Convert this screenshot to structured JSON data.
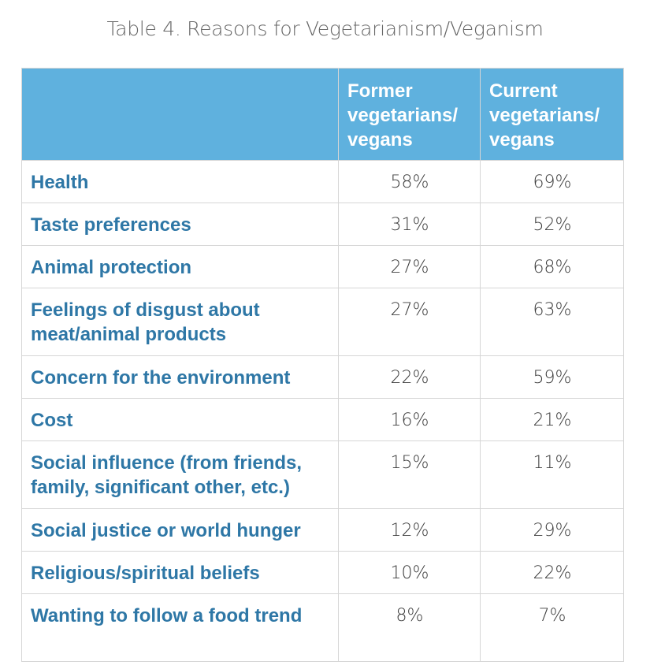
{
  "caption": "Table 4. Reasons for Vegetarianism/Veganism",
  "columns": {
    "former": "Former vegetarians/ vegans",
    "current": "Current vegetarians/ vegans"
  },
  "rows": [
    {
      "reason": "Health",
      "former": "58%",
      "current": "69%"
    },
    {
      "reason": "Taste preferences",
      "former": "31%",
      "current": "52%"
    },
    {
      "reason": "Animal protection",
      "former": "27%",
      "current": "68%"
    },
    {
      "reason": "Feelings of disgust about meat/animal products",
      "former": "27%",
      "current": "63%"
    },
    {
      "reason": "Concern for the environment",
      "former": "22%",
      "current": "59%"
    },
    {
      "reason": "Cost",
      "former": "16%",
      "current": "21%"
    },
    {
      "reason": "Social influence (from friends, family, significant other, etc.)",
      "former": "15%",
      "current": "11%"
    },
    {
      "reason": "Social justice or world hunger",
      "former": "12%",
      "current": "29%"
    },
    {
      "reason": "Religious/spiritual beliefs",
      "former": "10%",
      "current": "22%"
    },
    {
      "reason": "Wanting to follow a food trend",
      "former": "8%",
      "current": "7%"
    }
  ],
  "colors": {
    "header_bg": "#5fb1de",
    "header_text": "#ffffff",
    "label_text": "#2e77a6",
    "value_text": "#3b3b3b",
    "caption_text": "#666666",
    "grid": "#d6d6d6"
  }
}
